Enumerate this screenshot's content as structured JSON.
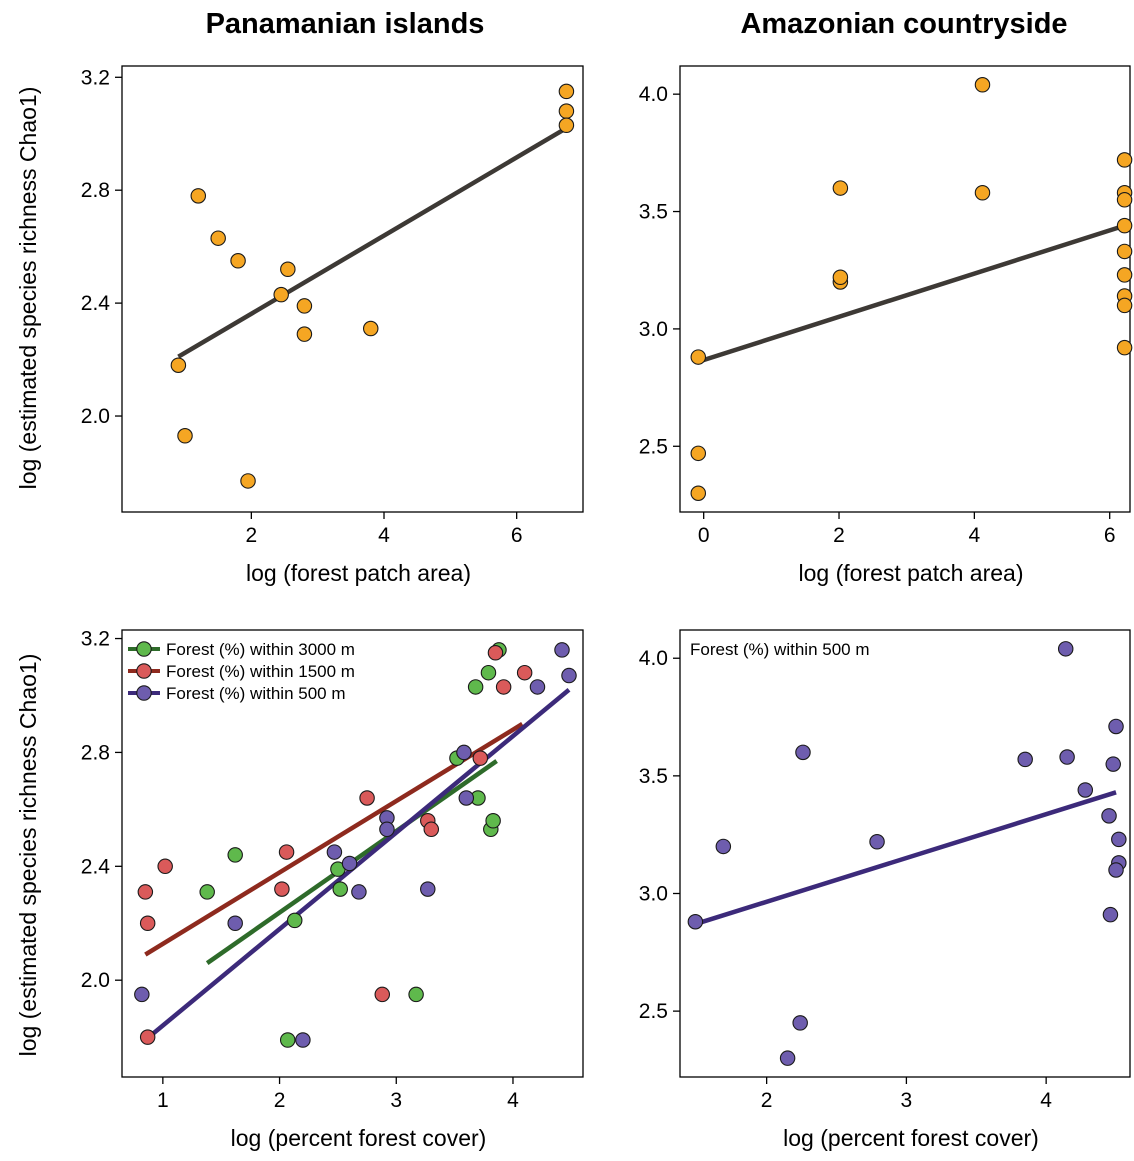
{
  "column_titles": [
    "Panamanian islands",
    "Amazonian countryside"
  ],
  "shared_ylabel": "log (estimated species richness Chao1)",
  "colors": {
    "orange": "#F5A623",
    "green": "#5FB94C",
    "red": "#DA5A5A",
    "purple": "#6E5DAE",
    "line_dark": "#3D3935",
    "line_green": "#2E6B2A",
    "line_red": "#8E2A1E",
    "line_purple": "#3C2A7A"
  },
  "chart_data": [
    {
      "id": "panama_area",
      "type": "scatter",
      "title": "Panamanian islands",
      "xlabel": "log (forest patch area)",
      "ylabel": "log (estimated species richness Chao1)",
      "xlim": [
        0.05,
        7.0
      ],
      "ylim": [
        1.66,
        3.24
      ],
      "xticks": [
        2,
        4,
        6
      ],
      "xtick_labels": [
        "2",
        "4",
        "6"
      ],
      "yticks": [
        2.0,
        2.4,
        2.8,
        3.2
      ],
      "ytick_labels": [
        "2.0",
        "2.4",
        "2.8",
        "3.2"
      ],
      "series": [
        {
          "color": "orange",
          "points": [
            [
              0.9,
              2.18
            ],
            [
              1.0,
              1.93
            ],
            [
              1.2,
              2.78
            ],
            [
              1.5,
              2.63
            ],
            [
              1.8,
              2.55
            ],
            [
              1.95,
              1.77
            ],
            [
              2.45,
              2.43
            ],
            [
              2.55,
              2.52
            ],
            [
              2.8,
              2.39
            ],
            [
              2.8,
              2.29
            ],
            [
              3.8,
              2.31
            ],
            [
              6.75,
              3.15
            ],
            [
              6.75,
              3.08
            ],
            [
              6.75,
              3.03
            ]
          ],
          "fit": [
            [
              0.9,
              2.21
            ],
            [
              6.75,
              3.02
            ]
          ],
          "fit_color": "line_dark"
        }
      ]
    },
    {
      "id": "amazon_area",
      "type": "scatter",
      "title": "Amazonian countryside",
      "xlabel": "log (forest patch area)",
      "ylabel": "",
      "xlim": [
        -0.35,
        6.3
      ],
      "ylim": [
        2.22,
        4.12
      ],
      "xticks": [
        0,
        2,
        4,
        6
      ],
      "xtick_labels": [
        "0",
        "2",
        "4",
        "6"
      ],
      "yticks": [
        2.5,
        3.0,
        3.5,
        4.0
      ],
      "ytick_labels": [
        "2.5",
        "3.0",
        "3.5",
        "4.0"
      ],
      "series": [
        {
          "color": "orange",
          "points": [
            [
              -0.08,
              2.3
            ],
            [
              -0.08,
              2.47
            ],
            [
              -0.08,
              2.88
            ],
            [
              2.02,
              3.2
            ],
            [
              2.02,
              3.22
            ],
            [
              2.02,
              3.6
            ],
            [
              4.12,
              3.58
            ],
            [
              4.12,
              4.04
            ],
            [
              6.22,
              3.72
            ],
            [
              6.22,
              3.58
            ],
            [
              6.22,
              3.55
            ],
            [
              6.22,
              3.44
            ],
            [
              6.22,
              3.33
            ],
            [
              6.22,
              3.23
            ],
            [
              6.22,
              3.14
            ],
            [
              6.22,
              3.1
            ],
            [
              6.22,
              2.92
            ]
          ],
          "fit": [
            [
              -0.08,
              2.86
            ],
            [
              6.22,
              3.44
            ]
          ],
          "fit_color": "line_dark"
        }
      ]
    },
    {
      "id": "panama_cover",
      "type": "scatter",
      "title": "",
      "xlabel": "log (percent forest cover)",
      "ylabel": "log (estimated species richness Chao1)",
      "xlim": [
        0.65,
        4.6
      ],
      "ylim": [
        1.66,
        3.23
      ],
      "xticks": [
        1,
        2,
        3,
        4
      ],
      "xtick_labels": [
        "1",
        "2",
        "3",
        "4"
      ],
      "yticks": [
        2.0,
        2.4,
        2.8,
        3.2
      ],
      "ytick_labels": [
        "2.0",
        "2.4",
        "2.8",
        "3.2"
      ],
      "legend": {
        "location": "top-left"
      },
      "series": [
        {
          "name": "Forest (%) within 3000 m",
          "color": "green",
          "line_color": "line_green",
          "points": [
            [
              1.38,
              2.31
            ],
            [
              1.62,
              2.44
            ],
            [
              2.07,
              1.79
            ],
            [
              2.13,
              2.21
            ],
            [
              2.5,
              2.39
            ],
            [
              2.52,
              2.32
            ],
            [
              3.17,
              1.95
            ],
            [
              3.52,
              2.78
            ],
            [
              3.68,
              3.03
            ],
            [
              3.7,
              2.64
            ],
            [
              3.79,
              3.08
            ],
            [
              3.81,
              2.53
            ],
            [
              3.83,
              2.56
            ],
            [
              3.88,
              3.16
            ]
          ],
          "fit": [
            [
              1.38,
              2.06
            ],
            [
              3.86,
              2.77
            ]
          ]
        },
        {
          "name": "Forest (%) within 1500 m",
          "color": "red",
          "line_color": "line_red",
          "points": [
            [
              0.85,
              2.31
            ],
            [
              0.87,
              2.2
            ],
            [
              0.87,
              1.8
            ],
            [
              1.02,
              2.4
            ],
            [
              2.02,
              2.32
            ],
            [
              2.06,
              2.45
            ],
            [
              2.75,
              2.64
            ],
            [
              2.88,
              1.95
            ],
            [
              3.27,
              2.56
            ],
            [
              3.3,
              2.53
            ],
            [
              3.72,
              2.78
            ],
            [
              3.85,
              3.15
            ],
            [
              3.92,
              3.03
            ],
            [
              4.1,
              3.08
            ]
          ],
          "fit": [
            [
              0.85,
              2.09
            ],
            [
              4.08,
              2.9
            ]
          ]
        },
        {
          "name": "Forest (%) within 500 m",
          "color": "purple",
          "line_color": "line_purple",
          "points": [
            [
              0.82,
              1.95
            ],
            [
              1.62,
              2.2
            ],
            [
              2.2,
              1.79
            ],
            [
              2.47,
              2.45
            ],
            [
              2.6,
              2.41
            ],
            [
              2.68,
              2.31
            ],
            [
              2.92,
              2.57
            ],
            [
              2.92,
              2.53
            ],
            [
              3.27,
              2.32
            ],
            [
              3.58,
              2.8
            ],
            [
              3.6,
              2.64
            ],
            [
              4.21,
              3.03
            ],
            [
              4.42,
              3.16
            ],
            [
              4.48,
              3.07
            ]
          ],
          "fit": [
            [
              0.85,
              1.79
            ],
            [
              4.48,
              3.02
            ]
          ]
        }
      ]
    },
    {
      "id": "amazon_cover",
      "type": "scatter",
      "title": "",
      "xlabel": "log (percent forest cover)",
      "ylabel": "",
      "xlim": [
        1.38,
        4.6
      ],
      "ylim": [
        2.22,
        4.12
      ],
      "xticks": [
        2,
        3,
        4
      ],
      "xtick_labels": [
        "2",
        "3",
        "4"
      ],
      "yticks": [
        2.5,
        3.0,
        3.5,
        4.0
      ],
      "ytick_labels": [
        "2.5",
        "3.0",
        "3.5",
        "4.0"
      ],
      "annotation": "Forest (%) within 500 m",
      "series": [
        {
          "color": "purple",
          "points": [
            [
              1.49,
              2.88
            ],
            [
              1.69,
              3.2
            ],
            [
              2.15,
              2.3
            ],
            [
              2.24,
              2.45
            ],
            [
              2.26,
              3.6
            ],
            [
              2.79,
              3.22
            ],
            [
              3.85,
              3.57
            ],
            [
              4.14,
              4.04
            ],
            [
              4.15,
              3.58
            ],
            [
              4.28,
              3.44
            ],
            [
              4.45,
              3.33
            ],
            [
              4.48,
              3.55
            ],
            [
              4.46,
              2.91
            ],
            [
              4.5,
              3.71
            ],
            [
              4.52,
              3.23
            ],
            [
              4.52,
              3.13
            ],
            [
              4.5,
              3.1
            ]
          ],
          "fit": [
            [
              1.49,
              2.87
            ],
            [
              4.5,
              3.43
            ]
          ],
          "fit_color": "line_purple"
        }
      ]
    }
  ]
}
